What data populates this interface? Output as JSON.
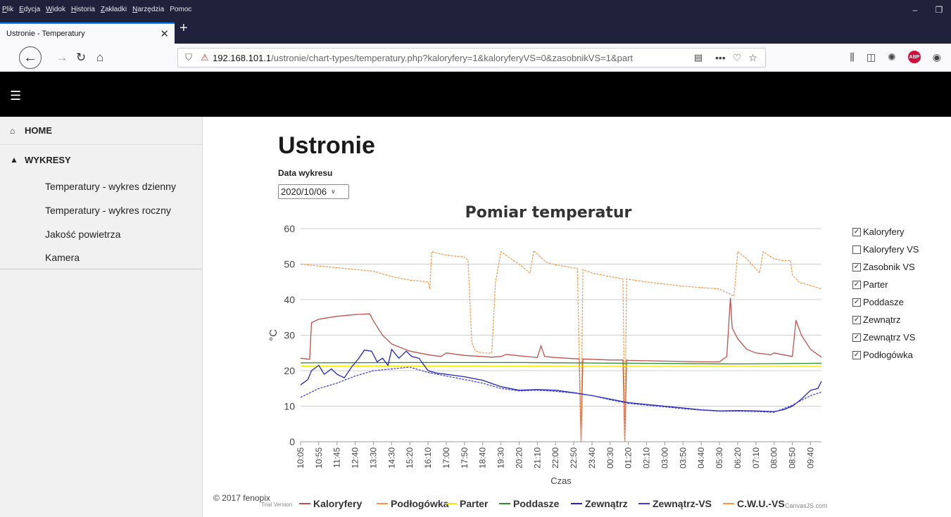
{
  "browser": {
    "menu": [
      {
        "key": "P",
        "rest": "lik"
      },
      {
        "key": "E",
        "rest": "dycja"
      },
      {
        "key": "W",
        "rest": "idok"
      },
      {
        "key": "H",
        "rest": "istoria"
      },
      {
        "key": "Z",
        "rest": "akładki"
      },
      {
        "key": "N",
        "rest": "arzędzia"
      },
      {
        "key": "",
        "rest": "Pomoc"
      }
    ],
    "tab_title": "Ustronie - Temperatury",
    "url_host": "192.168.101.1",
    "url_path": "/ustronie/chart-types/temperatury.php?kaloryfery=1&kaloryferyVS=0&zasobnikVS=1&part"
  },
  "sidebar": {
    "home": "HOME",
    "wykresy": "WYKRESY",
    "items": [
      "Temperatury - wykres dzienny",
      "Temperatury - wykres roczny",
      "Jakość powietrza",
      "Kamera"
    ]
  },
  "main": {
    "title": "Ustronie",
    "date_label": "Data wykresu",
    "date_value": "2020/10/06",
    "footer": "© 2017 fenopix"
  },
  "checkboxes": [
    {
      "label": "Kaloryfery",
      "checked": true
    },
    {
      "label": "Kaloryfery VS",
      "checked": false
    },
    {
      "label": "Zasobnik VS",
      "checked": true
    },
    {
      "label": "Parter",
      "checked": true
    },
    {
      "label": "Poddasze",
      "checked": true
    },
    {
      "label": "Zewnątrz",
      "checked": true
    },
    {
      "label": "Zewnątrz VS",
      "checked": true
    },
    {
      "label": "Podłogówka",
      "checked": true
    }
  ],
  "chart_data": {
    "type": "line",
    "title": "Pomiar temperatur",
    "xlabel": "Czas",
    "ylabel": "°C",
    "ylim": [
      0,
      60
    ],
    "yticks": [
      0,
      10,
      20,
      30,
      40,
      50,
      60
    ],
    "x_ticks": [
      "10:05",
      "10:55",
      "11:45",
      "12:40",
      "13:30",
      "14:30",
      "15:20",
      "16:10",
      "17:00",
      "17:50",
      "18:40",
      "19:30",
      "20:20",
      "21:10",
      "22:00",
      "22:50",
      "23:40",
      "00:30",
      "01:20",
      "02:10",
      "03:00",
      "03:50",
      "04:40",
      "05:30",
      "06:20",
      "07:10",
      "08:00",
      "08:50",
      "09:40"
    ],
    "x_range": [
      0,
      28.6
    ],
    "series": [
      {
        "name": "Kaloryfery",
        "color": "#c0504d",
        "dashed": false,
        "points": [
          [
            0,
            23.5
          ],
          [
            0.5,
            23.2
          ],
          [
            0.6,
            33.5
          ],
          [
            1,
            34.5
          ],
          [
            2,
            35.3
          ],
          [
            3,
            35.8
          ],
          [
            3.8,
            36
          ],
          [
            4,
            34
          ],
          [
            4.5,
            30
          ],
          [
            5,
            27.5
          ],
          [
            6,
            25.5
          ],
          [
            7,
            24.5
          ],
          [
            7.7,
            24
          ],
          [
            8,
            25
          ],
          [
            9,
            24.3
          ],
          [
            10,
            24
          ],
          [
            10.5,
            23.8
          ],
          [
            11,
            24
          ],
          [
            11.3,
            24.6
          ],
          [
            12,
            24.2
          ],
          [
            13,
            23.7
          ],
          [
            13.2,
            27
          ],
          [
            13.4,
            24
          ],
          [
            14,
            23.7
          ],
          [
            15.3,
            23.3
          ],
          [
            15.4,
            0
          ],
          [
            15.5,
            23.3
          ],
          [
            16,
            23.2
          ],
          [
            17,
            23
          ],
          [
            17.7,
            23
          ],
          [
            17.8,
            0
          ],
          [
            17.9,
            23
          ],
          [
            18,
            22.9
          ],
          [
            20,
            22.7
          ],
          [
            22,
            22.5
          ],
          [
            23,
            22.5
          ],
          [
            23.4,
            24
          ],
          [
            23.6,
            40.5
          ],
          [
            23.7,
            32
          ],
          [
            24,
            29
          ],
          [
            24.5,
            26
          ],
          [
            25,
            25
          ],
          [
            25.8,
            24.5
          ],
          [
            26,
            25
          ],
          [
            26.5,
            24.5
          ],
          [
            27,
            24
          ],
          [
            27.2,
            34.2
          ],
          [
            27.5,
            30
          ],
          [
            28,
            26
          ],
          [
            28.6,
            23.8
          ]
        ]
      },
      {
        "name": "Podłogówka",
        "color": "#f79646",
        "dashed": true,
        "points": [
          [
            0,
            50
          ],
          [
            2,
            49
          ],
          [
            4,
            48
          ],
          [
            5,
            46.5
          ],
          [
            6,
            45.5
          ],
          [
            7,
            45
          ],
          [
            7.1,
            43
          ],
          [
            7.2,
            53.5
          ],
          [
            8,
            52.5
          ],
          [
            9,
            52
          ],
          [
            9.2,
            51
          ],
          [
            9.4,
            28
          ],
          [
            9.6,
            25.5
          ],
          [
            10,
            25
          ],
          [
            10.5,
            25
          ],
          [
            10.7,
            45
          ],
          [
            11,
            53.5
          ],
          [
            12,
            50
          ],
          [
            12.6,
            47.5
          ],
          [
            12.8,
            53.8
          ],
          [
            13.5,
            50.5
          ],
          [
            14,
            49.8
          ],
          [
            15.2,
            48.8
          ],
          [
            15.4,
            0
          ],
          [
            15.5,
            48.5
          ],
          [
            16,
            47.5
          ],
          [
            17,
            46.5
          ],
          [
            17.7,
            45.8
          ],
          [
            17.8,
            0
          ],
          [
            17.9,
            45.8
          ],
          [
            19,
            45
          ],
          [
            21,
            43.8
          ],
          [
            23,
            43
          ],
          [
            23.8,
            41
          ],
          [
            24,
            53.5
          ],
          [
            24.5,
            51.5
          ],
          [
            25.2,
            47.5
          ],
          [
            25.4,
            53.5
          ],
          [
            26,
            51.5
          ],
          [
            26.5,
            51
          ],
          [
            26.9,
            51
          ],
          [
            27,
            47
          ],
          [
            27.4,
            44.8
          ],
          [
            28,
            44
          ],
          [
            28.6,
            43
          ]
        ]
      },
      {
        "name": "Parter",
        "color": "#f2e800",
        "dashed": false,
        "points": [
          [
            0,
            21.3
          ],
          [
            5,
            21.3
          ],
          [
            10,
            21.3
          ],
          [
            15,
            21.2
          ],
          [
            20,
            21.2
          ],
          [
            24,
            21.2
          ],
          [
            28.6,
            21.2
          ]
        ]
      },
      {
        "name": "Poddasze",
        "color": "#2e8b2e",
        "dashed": false,
        "points": [
          [
            0,
            22.2
          ],
          [
            6,
            22.3
          ],
          [
            12,
            22.3
          ],
          [
            18,
            22.1
          ],
          [
            24,
            21.9
          ],
          [
            28.6,
            22.1
          ]
        ]
      },
      {
        "name": "Zewnątrz",
        "color": "#2323b8",
        "dashed": false,
        "points": [
          [
            0,
            16
          ],
          [
            0.4,
            17.5
          ],
          [
            0.6,
            20
          ],
          [
            1,
            21.5
          ],
          [
            1.3,
            19
          ],
          [
            1.7,
            20.5
          ],
          [
            2,
            19
          ],
          [
            2.4,
            18
          ],
          [
            2.8,
            21
          ],
          [
            3.2,
            23.5
          ],
          [
            3.5,
            25.8
          ],
          [
            3.9,
            25.5
          ],
          [
            4.2,
            22.5
          ],
          [
            4.5,
            23.5
          ],
          [
            4.8,
            21.5
          ],
          [
            5,
            26
          ],
          [
            5.4,
            23.5
          ],
          [
            5.8,
            25.5
          ],
          [
            6.1,
            24
          ],
          [
            6.5,
            23.5
          ],
          [
            7,
            20
          ],
          [
            7.5,
            19.3
          ],
          [
            8,
            19
          ],
          [
            9,
            18.3
          ],
          [
            10,
            17.3
          ],
          [
            11,
            15.5
          ],
          [
            12,
            14.5
          ],
          [
            13,
            14.7
          ],
          [
            14,
            14.5
          ],
          [
            15,
            13.8
          ],
          [
            16,
            13
          ],
          [
            17,
            12
          ],
          [
            18,
            11
          ],
          [
            19,
            10.5
          ],
          [
            20,
            10
          ],
          [
            21,
            9.5
          ],
          [
            22,
            9
          ],
          [
            23,
            8.7
          ],
          [
            24,
            8.8
          ],
          [
            25,
            8.7
          ],
          [
            26,
            8.5
          ],
          [
            26.5,
            9
          ],
          [
            27,
            10
          ],
          [
            27.5,
            12
          ],
          [
            28,
            14.5
          ],
          [
            28.4,
            15
          ],
          [
            28.6,
            17
          ]
        ]
      },
      {
        "name": "Zewnątrz-VS",
        "color": "#3a3ae0",
        "dashed": true,
        "points": [
          [
            0,
            12.5
          ],
          [
            1,
            15
          ],
          [
            2,
            16.5
          ],
          [
            3,
            18.5
          ],
          [
            4,
            20
          ],
          [
            5,
            20.5
          ],
          [
            6,
            21
          ],
          [
            7,
            19.5
          ],
          [
            8,
            18.5
          ],
          [
            9,
            17.5
          ],
          [
            10,
            16.5
          ],
          [
            11,
            15
          ],
          [
            12,
            14.3
          ],
          [
            13,
            14.5
          ],
          [
            14,
            14.2
          ],
          [
            15,
            13.7
          ],
          [
            16,
            13
          ],
          [
            17,
            11.8
          ],
          [
            18,
            10.8
          ],
          [
            19,
            10.3
          ],
          [
            20,
            9.8
          ],
          [
            21,
            9.3
          ],
          [
            22,
            8.9
          ],
          [
            23,
            8.6
          ],
          [
            24,
            8.6
          ],
          [
            25,
            8.5
          ],
          [
            26,
            8.3
          ],
          [
            27,
            10.3
          ],
          [
            28,
            13
          ],
          [
            28.6,
            14
          ]
        ]
      },
      {
        "name": "C.W.U.-VS",
        "color": "#f79646",
        "dashed": false,
        "hidden": true,
        "points": []
      }
    ],
    "legend_bottom": [
      "Kaloryfery",
      "Podłogówka",
      "Parter",
      "Poddasze",
      "Zewnątrz",
      "Zewnątrz-VS",
      "C.W.U.-VS"
    ],
    "trial_text": "Trial Version",
    "credit_text": "CanvasJS.com"
  }
}
